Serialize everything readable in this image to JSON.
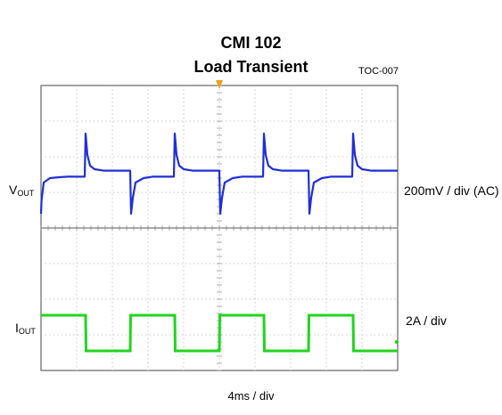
{
  "title": "CMI 102",
  "subtitle": "Load Transient",
  "tag": "TOC-007",
  "channels": {
    "vout": {
      "label_main": "V",
      "label_sub": "OUT",
      "scale": "200mV / div (AC)",
      "color": "#1f2fd6"
    },
    "iout": {
      "label_main": "I",
      "label_sub": "OUT",
      "scale": "2A / div",
      "color": "#22d41f"
    }
  },
  "time_scale": "4ms / div",
  "chart_data": {
    "type": "line",
    "x_unit": "ms",
    "x_range": [
      0,
      40
    ],
    "x_divisions": 10,
    "y_divisions": 8,
    "grid": true,
    "series": [
      {
        "name": "VOUT",
        "unit": "mV (AC)",
        "x": [
          0,
          0.05,
          0.3,
          1.0,
          2.0,
          3.0,
          4.9,
          5.0,
          5.2,
          5.5,
          6.0,
          7.0,
          10.0,
          10.1,
          10.3,
          10.6,
          11.5,
          12.5,
          14.9,
          15.0,
          15.2,
          15.5,
          16.0,
          17.0,
          20.0,
          20.1,
          20.3,
          20.6,
          21.5,
          22.5,
          24.9,
          25.0,
          25.2,
          25.5,
          26.0,
          27.0,
          30.0,
          30.1,
          30.3,
          30.6,
          31.5,
          32.5,
          34.9,
          35.0,
          35.2,
          35.5,
          36.0,
          37.0,
          40.0
        ],
        "values": [
          -200,
          -130,
          -25,
          0,
          5,
          8,
          8,
          250,
          130,
          70,
          50,
          42,
          42,
          -200,
          -110,
          -25,
          0,
          8,
          8,
          250,
          130,
          70,
          50,
          42,
          42,
          -200,
          -110,
          -25,
          0,
          8,
          8,
          250,
          130,
          70,
          50,
          42,
          42,
          -200,
          -110,
          -25,
          0,
          8,
          8,
          250,
          130,
          70,
          50,
          42,
          42
        ]
      },
      {
        "name": "IOUT",
        "unit": "A",
        "x": [
          0,
          5.0,
          5.05,
          10.0,
          10.05,
          15.0,
          15.05,
          20.0,
          20.05,
          25.0,
          25.05,
          30.0,
          30.05,
          35.0,
          35.05,
          40.0
        ],
        "values": [
          2.4,
          2.4,
          0.4,
          0.4,
          2.4,
          2.4,
          0.4,
          0.4,
          2.4,
          2.4,
          0.4,
          0.4,
          2.4,
          2.4,
          0.4,
          0.4
        ]
      }
    ]
  }
}
